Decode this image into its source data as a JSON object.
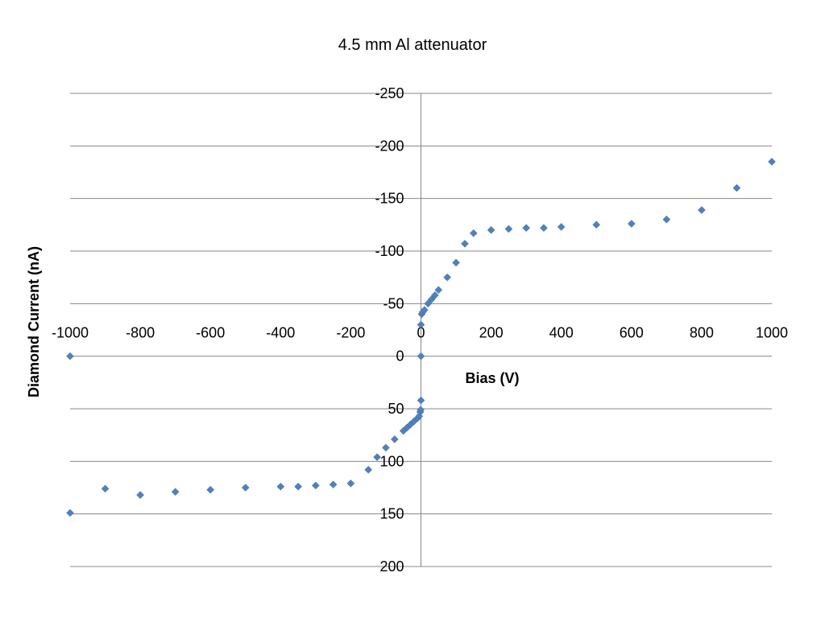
{
  "chart_data": {
    "type": "scatter",
    "title": "4.5 mm Al attenuator",
    "xlabel": "Bias (V)",
    "ylabel": "Diamond Current (nA)",
    "xlim": [
      -1000,
      1000
    ],
    "ylim": [
      -250,
      200
    ],
    "y_axis_reversed": true,
    "x_ticks": [
      -1000,
      -800,
      -600,
      -400,
      -200,
      0,
      200,
      400,
      600,
      800,
      1000
    ],
    "x_tick_labels": [
      "-1000",
      "-800",
      "-600",
      "-400",
      "-200",
      "0",
      "200",
      "400",
      "600",
      "800",
      "1000"
    ],
    "y_ticks": [
      -250,
      -200,
      -150,
      -100,
      -50,
      0,
      50,
      100,
      150,
      200
    ],
    "y_tick_labels": [
      "-250",
      "-200",
      "-150",
      "-100",
      "-50",
      "0",
      "50",
      "100",
      "150",
      "200"
    ],
    "grid": true,
    "marker": "diamond",
    "color": "#4F81BD",
    "series": [
      {
        "name": "Diamond Current",
        "points": [
          [
            -1000,
            0
          ],
          [
            -1000,
            149
          ],
          [
            -900,
            126
          ],
          [
            -800,
            132
          ],
          [
            -700,
            129
          ],
          [
            -600,
            127
          ],
          [
            -500,
            125
          ],
          [
            -400,
            124
          ],
          [
            -350,
            124
          ],
          [
            -300,
            123
          ],
          [
            -250,
            122
          ],
          [
            -200,
            121
          ],
          [
            -150,
            108
          ],
          [
            -125,
            96
          ],
          [
            -100,
            87
          ],
          [
            -75,
            79
          ],
          [
            -50,
            71
          ],
          [
            -40,
            68
          ],
          [
            -30,
            65
          ],
          [
            -20,
            62
          ],
          [
            -10,
            59
          ],
          [
            -5,
            57
          ],
          [
            -2,
            53
          ],
          [
            -1,
            51
          ],
          [
            0,
            42
          ],
          [
            0,
            0
          ],
          [
            0,
            -30
          ],
          [
            2,
            -40
          ],
          [
            5,
            -42
          ],
          [
            10,
            -44
          ],
          [
            20,
            -50
          ],
          [
            30,
            -54
          ],
          [
            40,
            -58
          ],
          [
            50,
            -63
          ],
          [
            75,
            -75
          ],
          [
            100,
            -89
          ],
          [
            125,
            -107
          ],
          [
            150,
            -117
          ],
          [
            200,
            -120
          ],
          [
            250,
            -121
          ],
          [
            300,
            -122
          ],
          [
            350,
            -122
          ],
          [
            400,
            -123
          ],
          [
            500,
            -125
          ],
          [
            600,
            -126
          ],
          [
            700,
            -130
          ],
          [
            800,
            -139
          ],
          [
            900,
            -160
          ],
          [
            1000,
            -185
          ]
        ]
      }
    ]
  }
}
